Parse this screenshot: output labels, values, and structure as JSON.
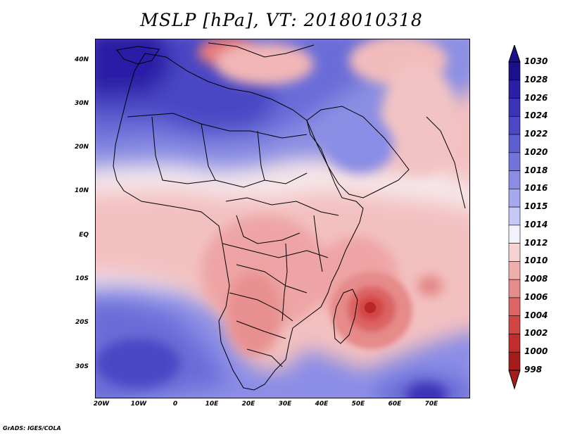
{
  "title": "MSLP [hPa], VT: 2018010318",
  "lat_labels": [
    "40N",
    "30N",
    "20N",
    "10N",
    "EQ",
    "10S",
    "20S",
    "30S"
  ],
  "lon_labels": [
    "20W",
    "10W",
    "0",
    "10E",
    "20E",
    "30E",
    "40E",
    "50E",
    "60E",
    "70E"
  ],
  "colorbar": {
    "levels": [
      "1030",
      "1028",
      "1026",
      "1024",
      "1022",
      "1020",
      "1018",
      "1016",
      "1015",
      "1014",
      "1012",
      "1010",
      "1008",
      "1006",
      "1004",
      "1002",
      "1000",
      "998"
    ],
    "colors": [
      "#1a0f8c",
      "#2a1fa6",
      "#3a33b8",
      "#4b48c6",
      "#5d5ed2",
      "#7274dc",
      "#8a8de6",
      "#a6a9ee",
      "#c6c8f5",
      "#f2f2fb",
      "#f6d2d2",
      "#eeaeae",
      "#e68a8a",
      "#dc6464",
      "#d14545",
      "#c12c2c",
      "#a51c1c"
    ]
  },
  "colors": {
    "high": "#1a0f8c",
    "low": "#a51c1c",
    "neutral": "#f2f2fb"
  },
  "footer": "GrADS: IGES/COLA"
}
